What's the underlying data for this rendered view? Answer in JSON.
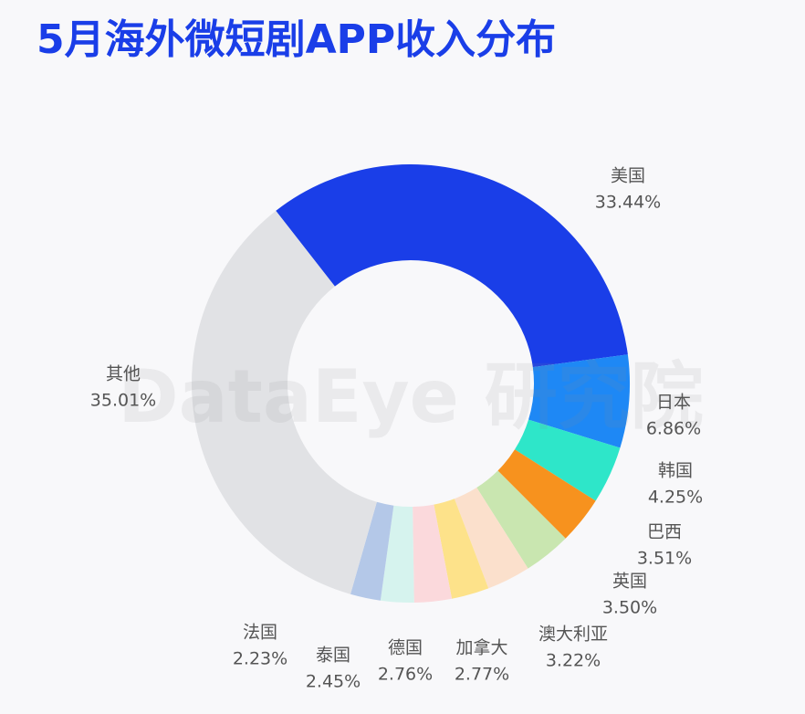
{
  "chart_data": {
    "type": "pie",
    "title": "5月海外微短剧APP收入分布",
    "watermark": "DataEye 研究院",
    "categories": [
      "美国",
      "日本",
      "韩国",
      "巴西",
      "英国",
      "澳大利亚",
      "加拿大",
      "德国",
      "泰国",
      "法国",
      "其他"
    ],
    "values": [
      33.44,
      6.86,
      4.25,
      3.51,
      3.5,
      3.22,
      2.77,
      2.76,
      2.45,
      2.23,
      35.01
    ],
    "value_labels": [
      "33.44%",
      "6.86%",
      "4.25%",
      "3.51%",
      "3.50%",
      "3.22%",
      "2.77%",
      "2.76%",
      "2.45%",
      "2.23%",
      "35.01%"
    ],
    "colors": [
      "#1a3ee8",
      "#1e88f5",
      "#2ee6c9",
      "#f7921e",
      "#c9e6b0",
      "#fbe0cc",
      "#fde28a",
      "#fbd9dc",
      "#d6f3ee",
      "#b4c8e8",
      "#e1e2e5"
    ]
  }
}
